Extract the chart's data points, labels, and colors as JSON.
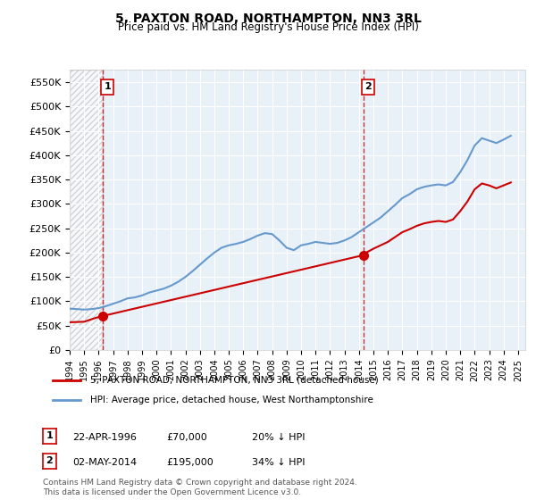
{
  "title": "5, PAXTON ROAD, NORTHAMPTON, NN3 3RL",
  "subtitle": "Price paid vs. HM Land Registry's House Price Index (HPI)",
  "sale1_date": "22-APR-1996",
  "sale1_price": 70000,
  "sale1_label": "20% ↓ HPI",
  "sale1_year": 1996.31,
  "sale2_date": "02-MAY-2014",
  "sale2_price": 195000,
  "sale2_label": "34% ↓ HPI",
  "sale2_year": 2014.34,
  "legend_line1": "5, PAXTON ROAD, NORTHAMPTON, NN3 3RL (detached house)",
  "legend_line2": "HPI: Average price, detached house, West Northamptonshire",
  "footnote": "Contains HM Land Registry data © Crown copyright and database right 2024.\nThis data is licensed under the Open Government Licence v3.0.",
  "sale_line_color": "#cc0000",
  "hpi_line_color": "#6699cc",
  "dot_color": "#cc0000",
  "vline_color": "#cc0000",
  "background_color": "#e8f0f8",
  "hatch_color": "#cccccc",
  "grid_color": "#ffffff",
  "ylim": [
    0,
    575000
  ],
  "xlim_start": 1994,
  "xlim_end": 2025.5,
  "yticks": [
    0,
    50000,
    100000,
    150000,
    200000,
    250000,
    300000,
    350000,
    400000,
    450000,
    500000,
    550000
  ],
  "xticks": [
    1994,
    1995,
    1996,
    1997,
    1998,
    1999,
    2000,
    2001,
    2002,
    2003,
    2004,
    2005,
    2006,
    2007,
    2008,
    2009,
    2010,
    2011,
    2012,
    2013,
    2014,
    2015,
    2016,
    2017,
    2018,
    2019,
    2020,
    2021,
    2022,
    2023,
    2024,
    2025
  ],
  "hpi_data": {
    "years": [
      1994.0,
      1994.5,
      1995.0,
      1995.5,
      1996.0,
      1996.5,
      1997.0,
      1997.5,
      1998.0,
      1998.5,
      1999.0,
      1999.5,
      2000.0,
      2000.5,
      2001.0,
      2001.5,
      2002.0,
      2002.5,
      2003.0,
      2003.5,
      2004.0,
      2004.5,
      2005.0,
      2005.5,
      2006.0,
      2006.5,
      2007.0,
      2007.5,
      2008.0,
      2008.5,
      2009.0,
      2009.5,
      2010.0,
      2010.5,
      2011.0,
      2011.5,
      2012.0,
      2012.5,
      2013.0,
      2013.5,
      2014.0,
      2014.5,
      2015.0,
      2015.5,
      2016.0,
      2016.5,
      2017.0,
      2017.5,
      2018.0,
      2018.5,
      2019.0,
      2019.5,
      2020.0,
      2020.5,
      2021.0,
      2021.5,
      2022.0,
      2022.5,
      2023.0,
      2023.5,
      2024.0,
      2024.5
    ],
    "values": [
      85000,
      84000,
      83000,
      84000,
      86000,
      90000,
      95000,
      100000,
      106000,
      108000,
      112000,
      118000,
      122000,
      126000,
      132000,
      140000,
      150000,
      162000,
      175000,
      188000,
      200000,
      210000,
      215000,
      218000,
      222000,
      228000,
      235000,
      240000,
      238000,
      225000,
      210000,
      205000,
      215000,
      218000,
      222000,
      220000,
      218000,
      220000,
      225000,
      232000,
      242000,
      252000,
      262000,
      272000,
      285000,
      298000,
      312000,
      320000,
      330000,
      335000,
      338000,
      340000,
      338000,
      345000,
      365000,
      390000,
      420000,
      435000,
      430000,
      425000,
      432000,
      440000
    ]
  },
  "sale_data": {
    "years": [
      1996.31,
      2014.34
    ],
    "values": [
      70000,
      195000
    ]
  },
  "sale_line_years": [
    1994.0,
    1994.2,
    1994.4,
    1994.6,
    1994.8,
    1995.0,
    1995.2,
    1995.4,
    1995.6,
    1995.8,
    1996.31,
    2014.34,
    2014.5,
    2015.0,
    2015.5,
    2016.0,
    2016.5,
    2017.0,
    2017.5,
    2018.0,
    2018.5,
    2019.0,
    2019.5,
    2020.0,
    2020.5,
    2021.0,
    2021.5,
    2022.0,
    2022.5,
    2023.0,
    2023.5,
    2024.0,
    2024.5
  ],
  "sale_line_values": [
    57000,
    57200,
    57400,
    57600,
    57800,
    58000,
    60000,
    62000,
    64000,
    66000,
    70000,
    195000,
    200000,
    208000,
    215000,
    222000,
    232000,
    242000,
    248000,
    255000,
    260000,
    263000,
    265000,
    263000,
    268000,
    285000,
    305000,
    330000,
    342000,
    338000,
    332000,
    338000,
    344000
  ]
}
